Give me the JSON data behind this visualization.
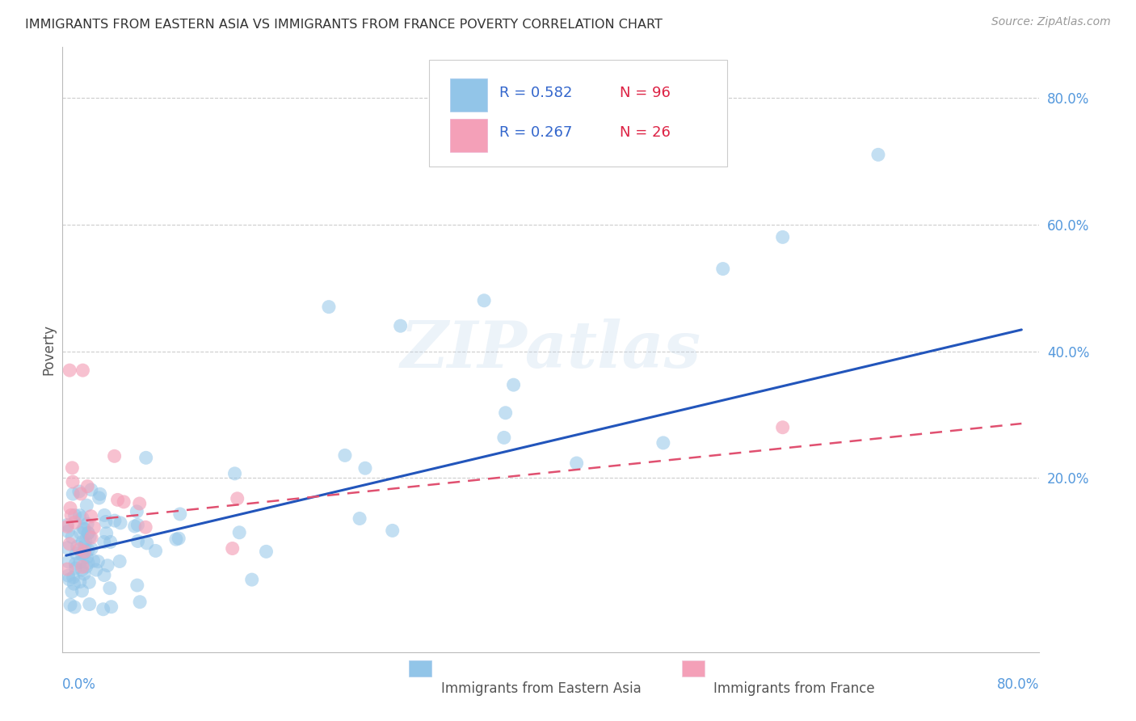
{
  "title": "IMMIGRANTS FROM EASTERN ASIA VS IMMIGRANTS FROM FRANCE POVERTY CORRELATION CHART",
  "source": "Source: ZipAtlas.com",
  "ylabel": "Poverty",
  "ytick_values": [
    0.2,
    0.4,
    0.6,
    0.8
  ],
  "xlim": [
    -0.003,
    0.815
  ],
  "ylim": [
    -0.075,
    0.88
  ],
  "label1": "Immigrants from Eastern Asia",
  "label2": "Immigrants from France",
  "color1": "#92C5E8",
  "color2": "#F4A0B8",
  "trendline1_color": "#2255BB",
  "trendline2_color": "#E05070",
  "watermark": "ZIPatlas",
  "tick_color": "#5599DD",
  "title_color": "#333333",
  "source_color": "#999999",
  "blue_intercept": 0.078,
  "blue_slope": 0.445,
  "pink_intercept": 0.13,
  "pink_slope": 0.195
}
